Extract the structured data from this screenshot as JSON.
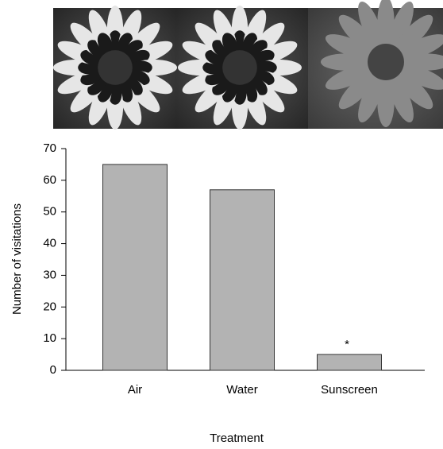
{
  "chart_data": {
    "type": "bar",
    "x_label": "Treatment",
    "y_label": "Number of visitations",
    "categories": [
      "Air",
      "Water",
      "Sunscreen"
    ],
    "values": [
      65,
      57,
      5
    ],
    "color": "#b3b3b3",
    "ylim": [
      0,
      70
    ],
    "yticks": [
      0,
      10,
      20,
      30,
      40,
      50,
      60,
      70
    ],
    "annotations": [
      {
        "text": "*",
        "category": 2
      }
    ]
  }
}
